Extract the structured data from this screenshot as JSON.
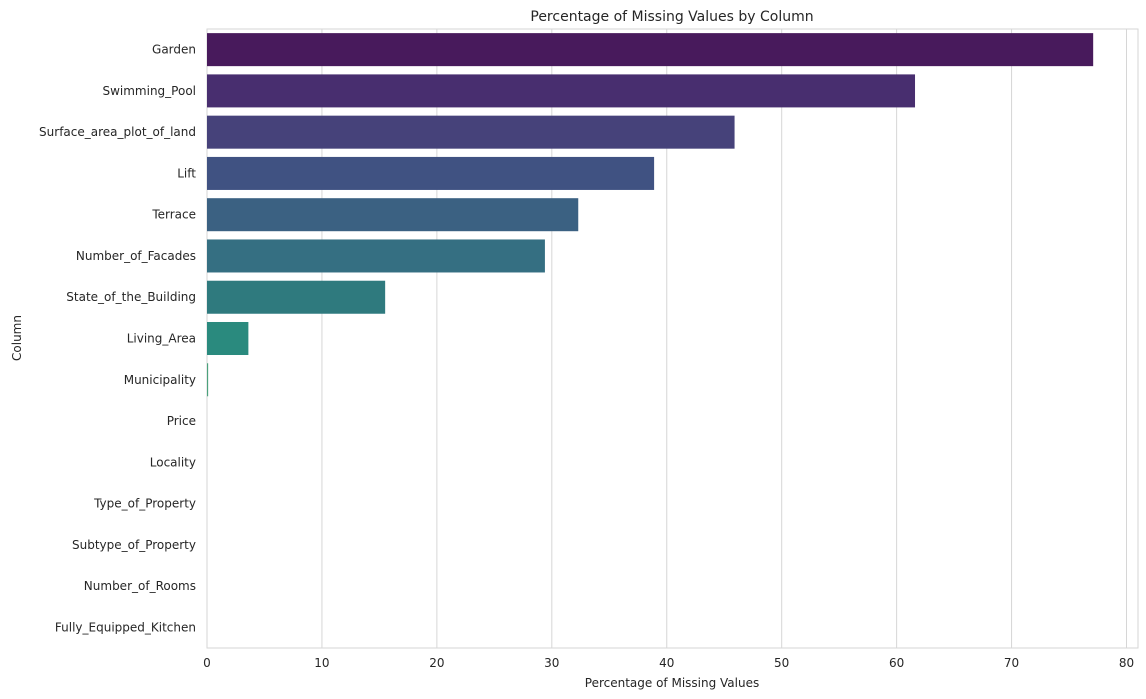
{
  "chart_data": {
    "type": "bar",
    "orientation": "horizontal",
    "title": "Percentage of Missing Values by Column",
    "xlabel": "Percentage of Missing Values",
    "ylabel": "Column",
    "xlim": [
      0,
      81
    ],
    "xticks": [
      0,
      10,
      20,
      30,
      40,
      50,
      60,
      70,
      80
    ],
    "grid": "vertical",
    "palette": "viridis",
    "categories": [
      "Garden",
      "Swimming_Pool",
      "Surface_area_plot_of_land",
      "Lift",
      "Terrace",
      "Number_of_Facades",
      "State_of_the_Building",
      "Living_Area",
      "Municipality",
      "Price",
      "Locality",
      "Type_of_Property",
      "Subtype_of_Property",
      "Number_of_Rooms",
      "Fully_Equipped_Kitchen"
    ],
    "values": [
      77.1,
      61.6,
      45.9,
      38.9,
      32.3,
      29.4,
      15.5,
      3.6,
      0.1,
      0,
      0,
      0,
      0,
      0,
      0
    ],
    "colors": [
      "#481a5c",
      "#482e6f",
      "#46427a",
      "#405282",
      "#3b6182",
      "#356f82",
      "#2f7a7e",
      "#2a8a7e",
      "#4ba17c",
      "#5bb77a",
      "#7cc66a",
      "#9ed25a",
      "#c1dc3e",
      "#dfe22f",
      "#fde725"
    ]
  }
}
